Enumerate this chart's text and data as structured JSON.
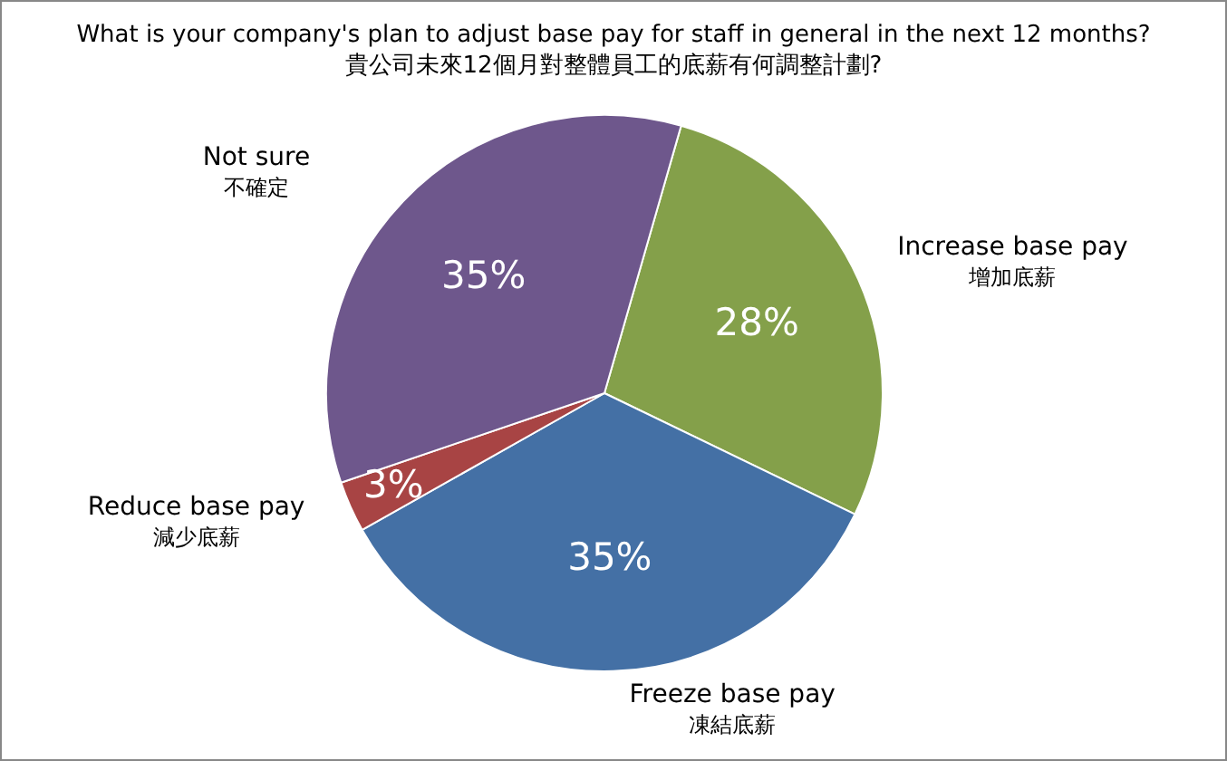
{
  "chart_data": {
    "type": "pie",
    "title": "What is your company's plan to adjust base pay for staff in general in the next 12 months?\n貴公司未來12個月對整體員工的底薪有何調整計劃?",
    "categories": [
      "Increase base pay\n增加底薪",
      "Freeze base pay\n凍結底薪",
      "Reduce base pay\n減少底薪",
      "Not sure\n不確定"
    ],
    "values": [
      28,
      35,
      3,
      35
    ],
    "colors": [
      "#84a04a",
      "#4470a5",
      "#a84444",
      "#6e578c"
    ],
    "value_labels": [
      "28%",
      "35%",
      "3%",
      "35%"
    ],
    "legend": false
  }
}
